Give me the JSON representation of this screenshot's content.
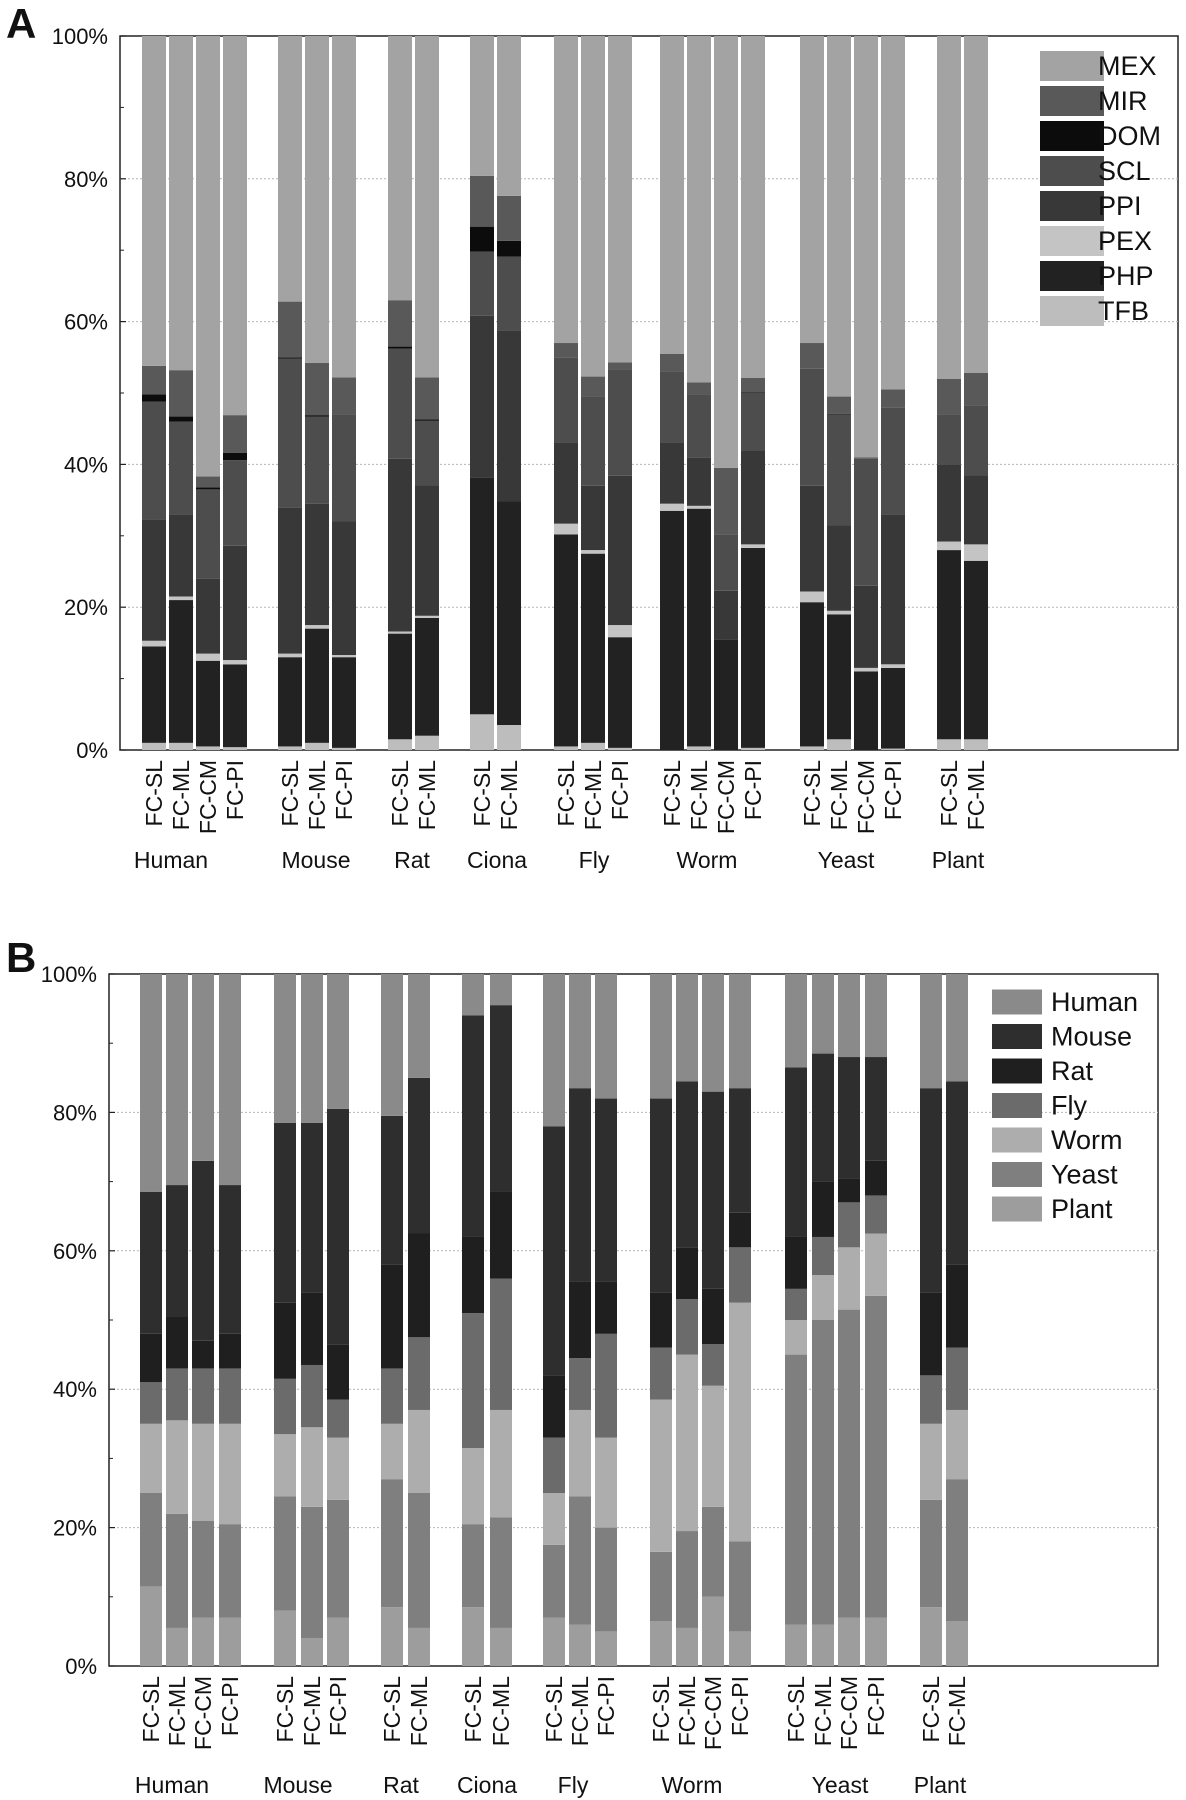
{
  "colors": {
    "MEX": "#a3a3a3",
    "MIR": "#595959",
    "DOM": "#0c0c0c",
    "SCL": "#4d4d4d",
    "PPI": "#383838",
    "PEX": "#c4c4c4",
    "PHP": "#222222",
    "TFB": "#bdbdbd",
    "Human": "#8a8a8a",
    "Mouse": "#2e2e2e",
    "Rat": "#1f1f1f",
    "Fly": "#6b6b6b",
    "Worm": "#adadad",
    "Yeast": "#7f7f7f",
    "Plant": "#9d9d9d"
  },
  "chart_data": [
    {
      "panel_label": "A",
      "type": "bar",
      "stacked": true,
      "ylim": [
        0,
        100
      ],
      "yticks": [
        "0%",
        "20%",
        "40%",
        "60%",
        "80%",
        "100%"
      ],
      "grid": true,
      "legend_position": "top-right",
      "legend": [
        "MEX",
        "MIR",
        "DOM",
        "SCL",
        "PPI",
        "PEX",
        "PHP",
        "TFB"
      ],
      "stack_order": [
        "TFB",
        "PHP",
        "PEX",
        "PPI",
        "SCL",
        "DOM",
        "MIR",
        "MEX"
      ],
      "groups": [
        {
          "name": "Human",
          "bars": [
            {
              "label": "FC-SL",
              "values": {
                "TFB": 1.0,
                "PHP": 13.5,
                "PEX": 0.8,
                "PPI": 17.0,
                "SCL": 16.5,
                "DOM": 1.0,
                "MIR": 4.0,
                "MEX": 46.2
              }
            },
            {
              "label": "FC-ML",
              "values": {
                "TFB": 1.0,
                "PHP": 20.0,
                "PEX": 0.5,
                "PPI": 11.5,
                "SCL": 13.0,
                "DOM": 0.7,
                "MIR": 6.5,
                "MEX": 46.8
              }
            },
            {
              "label": "FC-CM",
              "values": {
                "TFB": 0.5,
                "PHP": 12.0,
                "PEX": 1.0,
                "PPI": 10.5,
                "SCL": 12.5,
                "DOM": 0.3,
                "MIR": 1.5,
                "MEX": 61.7
              }
            },
            {
              "label": "FC-PI",
              "values": {
                "TFB": 0.4,
                "PHP": 11.6,
                "PEX": 0.6,
                "PPI": 16.0,
                "SCL": 12.0,
                "DOM": 1.0,
                "MIR": 5.3,
                "MEX": 53.1
              }
            }
          ]
        },
        {
          "name": "Mouse",
          "bars": [
            {
              "label": "FC-SL",
              "values": {
                "TFB": 0.5,
                "PHP": 12.5,
                "PEX": 0.5,
                "PPI": 20.5,
                "SCL": 20.8,
                "DOM": 0.2,
                "MIR": 7.8,
                "MEX": 37.2
              }
            },
            {
              "label": "FC-ML",
              "values": {
                "TFB": 1.0,
                "PHP": 16.0,
                "PEX": 0.5,
                "PPI": 17.0,
                "SCL": 12.2,
                "DOM": 0.2,
                "MIR": 7.3,
                "MEX": 45.8
              }
            },
            {
              "label": "FC-PI",
              "values": {
                "TFB": 0.3,
                "PHP": 12.7,
                "PEX": 0.3,
                "PPI": 18.7,
                "SCL": 15.0,
                "DOM": 0.0,
                "MIR": 5.2,
                "MEX": 47.8
              }
            }
          ]
        },
        {
          "name": "Rat",
          "bars": [
            {
              "label": "FC-SL",
              "values": {
                "TFB": 1.5,
                "PHP": 14.8,
                "PEX": 0.3,
                "PPI": 24.2,
                "SCL": 15.4,
                "DOM": 0.3,
                "MIR": 6.5,
                "MEX": 37.0
              }
            },
            {
              "label": "FC-ML",
              "values": {
                "TFB": 2.0,
                "PHP": 16.5,
                "PEX": 0.3,
                "PPI": 18.3,
                "SCL": 9.0,
                "DOM": 0.2,
                "MIR": 5.9,
                "MEX": 47.8
              }
            }
          ]
        },
        {
          "name": "Ciona",
          "bars": [
            {
              "label": "FC-SL",
              "values": {
                "TFB": 5.0,
                "PHP": 33.2,
                "PEX": 0.0,
                "PPI": 22.6,
                "SCL": 9.0,
                "DOM": 3.5,
                "MIR": 7.1,
                "MEX": 19.6
              }
            },
            {
              "label": "FC-ML",
              "values": {
                "TFB": 3.5,
                "PHP": 31.3,
                "PEX": 0.0,
                "PPI": 24.0,
                "SCL": 10.3,
                "DOM": 2.2,
                "MIR": 6.3,
                "MEX": 22.4
              }
            }
          ]
        },
        {
          "name": "Fly",
          "bars": [
            {
              "label": "FC-SL",
              "values": {
                "TFB": 0.5,
                "PHP": 29.7,
                "PEX": 1.5,
                "PPI": 11.3,
                "SCL": 12.0,
                "DOM": 0.0,
                "MIR": 2.0,
                "MEX": 43.0
              }
            },
            {
              "label": "FC-ML",
              "values": {
                "TFB": 1.0,
                "PHP": 26.5,
                "PEX": 0.5,
                "PPI": 9.0,
                "SCL": 12.5,
                "DOM": 0.0,
                "MIR": 2.8,
                "MEX": 47.7
              }
            },
            {
              "label": "FC-PI",
              "values": {
                "TFB": 0.3,
                "PHP": 15.5,
                "PEX": 1.7,
                "PPI": 20.9,
                "SCL": 14.9,
                "DOM": 0.0,
                "MIR": 1.0,
                "MEX": 45.7
              }
            }
          ]
        },
        {
          "name": "Worm",
          "bars": [
            {
              "label": "FC-SL",
              "values": {
                "TFB": 0.0,
                "PHP": 33.5,
                "PEX": 1.0,
                "PPI": 8.5,
                "SCL": 10.0,
                "DOM": 0.0,
                "MIR": 2.5,
                "MEX": 44.5
              }
            },
            {
              "label": "FC-ML",
              "values": {
                "TFB": 0.5,
                "PHP": 33.3,
                "PEX": 0.4,
                "PPI": 6.8,
                "SCL": 8.8,
                "DOM": 0.0,
                "MIR": 1.7,
                "MEX": 48.5
              }
            },
            {
              "label": "FC-CM",
              "values": {
                "TFB": 0.0,
                "PHP": 15.5,
                "PEX": 0.0,
                "PPI": 6.8,
                "SCL": 7.9,
                "DOM": 0.0,
                "MIR": 9.3,
                "MEX": 60.5
              }
            },
            {
              "label": "FC-PI",
              "values": {
                "TFB": 0.3,
                "PHP": 28.0,
                "PEX": 0.5,
                "PPI": 13.2,
                "SCL": 8.0,
                "DOM": 0.1,
                "MIR": 2.0,
                "MEX": 47.9
              }
            }
          ]
        },
        {
          "name": "Yeast",
          "bars": [
            {
              "label": "FC-SL",
              "values": {
                "TFB": 0.5,
                "PHP": 20.2,
                "PEX": 1.5,
                "PPI": 14.8,
                "SCL": 16.4,
                "DOM": 0.0,
                "MIR": 3.6,
                "MEX": 43.0
              }
            },
            {
              "label": "FC-ML",
              "values": {
                "TFB": 1.5,
                "PHP": 17.5,
                "PEX": 0.5,
                "PPI": 12.0,
                "SCL": 15.5,
                "DOM": 0.1,
                "MIR": 2.4,
                "MEX": 50.5
              }
            },
            {
              "label": "FC-CM",
              "values": {
                "TFB": 0.0,
                "PHP": 11.0,
                "PEX": 0.5,
                "PPI": 11.5,
                "SCL": 17.8,
                "DOM": 0.0,
                "MIR": 0.2,
                "MEX": 59.0
              }
            },
            {
              "label": "FC-PI",
              "values": {
                "TFB": 0.2,
                "PHP": 11.3,
                "PEX": 0.5,
                "PPI": 21.0,
                "SCL": 15.0,
                "DOM": 0.0,
                "MIR": 2.5,
                "MEX": 49.5
              }
            }
          ]
        },
        {
          "name": "Plant",
          "bars": [
            {
              "label": "FC-SL",
              "values": {
                "TFB": 1.5,
                "PHP": 26.5,
                "PEX": 1.2,
                "PPI": 10.8,
                "SCL": 7.0,
                "DOM": 0.0,
                "MIR": 5.0,
                "MEX": 48.0
              }
            },
            {
              "label": "FC-ML",
              "values": {
                "TFB": 1.5,
                "PHP": 25.0,
                "PEX": 2.3,
                "PPI": 9.7,
                "SCL": 9.8,
                "DOM": 0.0,
                "MIR": 4.5,
                "MEX": 47.2
              }
            }
          ]
        }
      ]
    },
    {
      "panel_label": "B",
      "type": "bar",
      "stacked": true,
      "ylim": [
        0,
        100
      ],
      "yticks": [
        "0%",
        "20%",
        "40%",
        "60%",
        "80%",
        "100%"
      ],
      "grid": true,
      "legend_position": "top-right",
      "legend": [
        "Human",
        "Mouse",
        "Rat",
        "Fly",
        "Worm",
        "Yeast",
        "Plant"
      ],
      "stack_order": [
        "Plant",
        "Yeast",
        "Worm",
        "Fly",
        "Rat",
        "Mouse",
        "Human"
      ],
      "groups": [
        {
          "name": "Human",
          "bars": [
            {
              "label": "FC-SL",
              "values": {
                "Plant": 11.5,
                "Yeast": 13.5,
                "Worm": 10.0,
                "Fly": 6.0,
                "Rat": 7.0,
                "Mouse": 20.5,
                "Human": 31.5
              }
            },
            {
              "label": "FC-ML",
              "values": {
                "Plant": 5.5,
                "Yeast": 16.5,
                "Worm": 13.5,
                "Fly": 7.5,
                "Rat": 7.5,
                "Mouse": 19.0,
                "Human": 30.5
              }
            },
            {
              "label": "FC-CM",
              "values": {
                "Plant": 7.0,
                "Yeast": 14.0,
                "Worm": 14.0,
                "Fly": 8.0,
                "Rat": 4.0,
                "Mouse": 26.0,
                "Human": 27.0
              }
            },
            {
              "label": "FC-PI",
              "values": {
                "Plant": 7.0,
                "Yeast": 13.5,
                "Worm": 14.5,
                "Fly": 8.0,
                "Rat": 5.0,
                "Mouse": 21.5,
                "Human": 30.5
              }
            }
          ]
        },
        {
          "name": "Mouse",
          "bars": [
            {
              "label": "FC-SL",
              "values": {
                "Plant": 8.0,
                "Yeast": 16.5,
                "Worm": 9.0,
                "Fly": 8.0,
                "Rat": 11.0,
                "Mouse": 26.0,
                "Human": 21.5
              }
            },
            {
              "label": "FC-ML",
              "values": {
                "Plant": 4.0,
                "Yeast": 19.0,
                "Worm": 11.5,
                "Fly": 9.0,
                "Rat": 10.5,
                "Mouse": 24.5,
                "Human": 21.5
              }
            },
            {
              "label": "FC-PI",
              "values": {
                "Plant": 7.0,
                "Yeast": 17.0,
                "Worm": 9.0,
                "Fly": 5.5,
                "Rat": 8.0,
                "Mouse": 34.0,
                "Human": 19.5
              }
            }
          ]
        },
        {
          "name": "Rat",
          "bars": [
            {
              "label": "FC-SL",
              "values": {
                "Plant": 8.5,
                "Yeast": 18.5,
                "Worm": 8.0,
                "Fly": 8.0,
                "Rat": 15.0,
                "Mouse": 21.5,
                "Human": 20.5
              }
            },
            {
              "label": "FC-ML",
              "values": {
                "Plant": 5.5,
                "Yeast": 19.5,
                "Worm": 12.0,
                "Fly": 10.5,
                "Rat": 15.0,
                "Mouse": 22.5,
                "Human": 15.0
              }
            }
          ]
        },
        {
          "name": "Ciona",
          "bars": [
            {
              "label": "FC-SL",
              "values": {
                "Plant": 8.5,
                "Yeast": 12.0,
                "Worm": 11.0,
                "Fly": 19.5,
                "Rat": 11.0,
                "Mouse": 32.0,
                "Human": 6.0
              }
            },
            {
              "label": "FC-ML",
              "values": {
                "Plant": 5.5,
                "Yeast": 16.0,
                "Worm": 15.5,
                "Fly": 19.0,
                "Rat": 12.5,
                "Mouse": 27.0,
                "Human": 4.5
              }
            }
          ]
        },
        {
          "name": "Fly",
          "bars": [
            {
              "label": "FC-SL",
              "values": {
                "Plant": 7.0,
                "Yeast": 10.5,
                "Worm": 7.5,
                "Fly": 8.0,
                "Rat": 9.0,
                "Mouse": 36.0,
                "Human": 22.0
              }
            },
            {
              "label": "FC-ML",
              "values": {
                "Plant": 6.0,
                "Yeast": 18.5,
                "Worm": 12.5,
                "Fly": 7.5,
                "Rat": 11.0,
                "Mouse": 28.0,
                "Human": 16.5
              }
            },
            {
              "label": "FC-PI",
              "values": {
                "Plant": 5.0,
                "Yeast": 15.0,
                "Worm": 13.0,
                "Fly": 15.0,
                "Rat": 7.5,
                "Mouse": 26.5,
                "Human": 18.0
              }
            }
          ]
        },
        {
          "name": "Worm",
          "bars": [
            {
              "label": "FC-SL",
              "values": {
                "Plant": 6.5,
                "Yeast": 10.0,
                "Worm": 22.0,
                "Fly": 7.5,
                "Rat": 8.0,
                "Mouse": 28.0,
                "Human": 18.0
              }
            },
            {
              "label": "FC-ML",
              "values": {
                "Plant": 5.5,
                "Yeast": 14.0,
                "Worm": 25.5,
                "Fly": 8.0,
                "Rat": 7.5,
                "Mouse": 24.0,
                "Human": 15.5
              }
            },
            {
              "label": "FC-CM",
              "values": {
                "Plant": 10.0,
                "Yeast": 13.0,
                "Worm": 17.5,
                "Fly": 6.0,
                "Rat": 8.0,
                "Mouse": 28.5,
                "Human": 17.0
              }
            },
            {
              "label": "FC-PI",
              "values": {
                "Plant": 5.0,
                "Yeast": 13.0,
                "Worm": 34.5,
                "Fly": 8.0,
                "Rat": 5.0,
                "Mouse": 18.0,
                "Human": 16.5
              }
            }
          ]
        },
        {
          "name": "Yeast",
          "bars": [
            {
              "label": "FC-SL",
              "values": {
                "Plant": 6.0,
                "Yeast": 39.0,
                "Worm": 5.0,
                "Fly": 4.5,
                "Rat": 7.5,
                "Mouse": 24.5,
                "Human": 13.5
              }
            },
            {
              "label": "FC-ML",
              "values": {
                "Plant": 6.0,
                "Yeast": 44.0,
                "Worm": 6.5,
                "Fly": 5.5,
                "Rat": 8.0,
                "Mouse": 18.5,
                "Human": 11.5
              }
            },
            {
              "label": "FC-CM",
              "values": {
                "Plant": 7.0,
                "Yeast": 44.5,
                "Worm": 9.0,
                "Fly": 6.5,
                "Rat": 3.5,
                "Mouse": 17.5,
                "Human": 12.0
              }
            },
            {
              "label": "FC-PI",
              "values": {
                "Plant": 7.0,
                "Yeast": 46.5,
                "Worm": 9.0,
                "Fly": 5.5,
                "Rat": 5.0,
                "Mouse": 15.0,
                "Human": 12.0
              }
            }
          ]
        },
        {
          "name": "Plant",
          "bars": [
            {
              "label": "FC-SL",
              "values": {
                "Plant": 8.5,
                "Yeast": 15.5,
                "Worm": 11.0,
                "Fly": 7.0,
                "Rat": 12.0,
                "Mouse": 29.5,
                "Human": 16.5
              }
            },
            {
              "label": "FC-ML",
              "values": {
                "Plant": 6.5,
                "Yeast": 20.5,
                "Worm": 10.0,
                "Fly": 9.0,
                "Rat": 12.0,
                "Mouse": 26.5,
                "Human": 15.5
              }
            }
          ]
        }
      ]
    }
  ]
}
